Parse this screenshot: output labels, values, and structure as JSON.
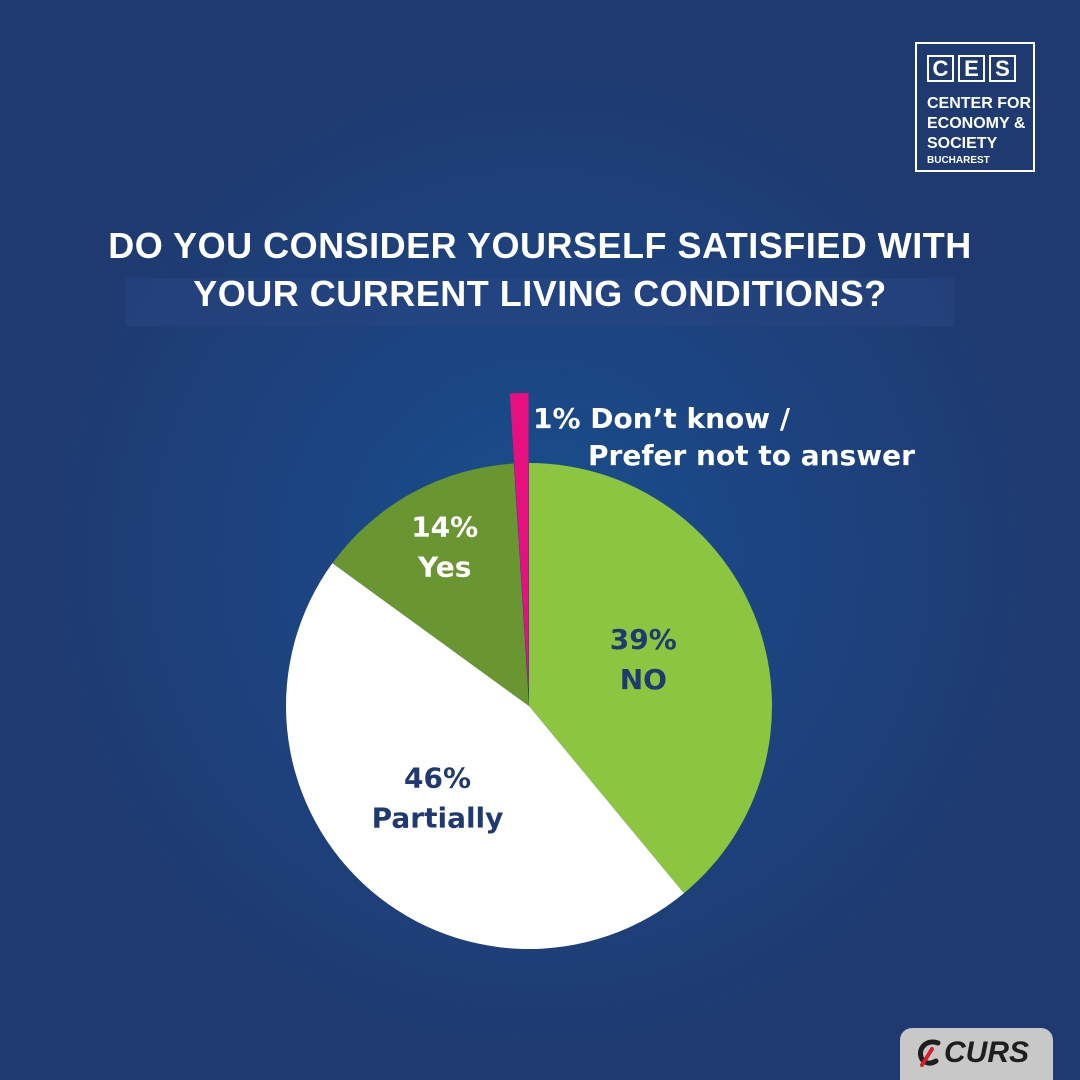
{
  "logo": {
    "letters": [
      "C",
      "E",
      "S"
    ],
    "line1": "CENTER FOR",
    "line2": "ECONOMY &",
    "line3": "SOCIETY",
    "line4": "BUCHAREST"
  },
  "title": {
    "line1": "DO YOU CONSIDER YOURSELF SATISFIED WITH",
    "line2": "YOUR CURRENT LIVING CONDITIONS?"
  },
  "chart_data": {
    "type": "pie",
    "slices": [
      {
        "label": "NO",
        "value": 39,
        "value_label": "39%",
        "color": "#8cc540",
        "text_color": "#1f3a70"
      },
      {
        "label": "Partially",
        "value": 46,
        "value_label": "46%",
        "color": "#ffffff",
        "text_color": "#1f3a70"
      },
      {
        "label": "Yes",
        "value": 14,
        "value_label": "14%",
        "color": "#6a9632",
        "text_color": "#ffffff"
      },
      {
        "label": "Don’t know / Prefer not to answer",
        "value": 1,
        "value_label": "1%",
        "color": "#e6107f",
        "text_color": "#ffffff",
        "exploded": true
      }
    ],
    "callout": {
      "line1": "1% Don’t know /",
      "line2": "Prefer not to answer"
    }
  },
  "footer": {
    "brand": "CURS"
  },
  "colors": {
    "background": "#1f3a70",
    "accent_green": "#8cc540",
    "dark_green": "#6a9632",
    "magenta": "#e6107f",
    "text_navy": "#1f3a70"
  }
}
